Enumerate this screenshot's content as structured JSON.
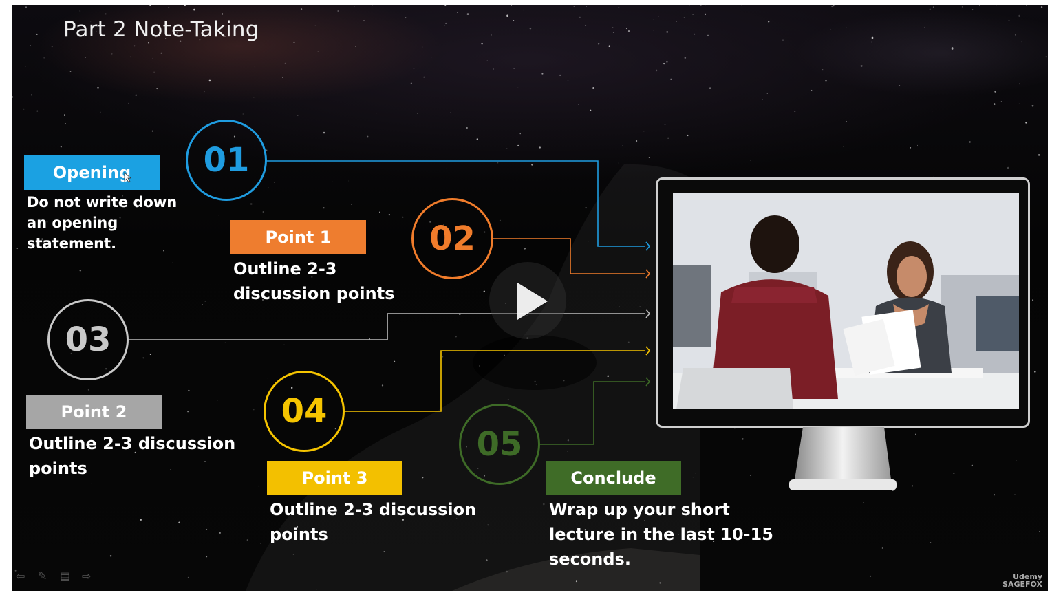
{
  "slide": {
    "title": "Part 2 Note-Taking",
    "steps": [
      {
        "number": "01",
        "color": "#1f9ce0",
        "label": "Opening",
        "label_bg": "#1ba1e2",
        "description_lines": [
          "Do not write down",
          "an opening",
          "statement."
        ]
      },
      {
        "number": "02",
        "color": "#f07c2b",
        "label": "Point 1",
        "label_bg": "#ee7d2f",
        "description_lines": [
          "Outline 2-3",
          "discussion points"
        ]
      },
      {
        "number": "03",
        "color": "#c9c9c9",
        "label": "Point 2",
        "label_bg": "#a6a6a6",
        "description_lines": [
          "Outline 2-3 discussion",
          "points"
        ]
      },
      {
        "number": "04",
        "color": "#f5c400",
        "label": "Point 3",
        "label_bg": "#f3c000",
        "description_lines": [
          "Outline 2-3 discussion",
          "points"
        ]
      },
      {
        "number": "05",
        "color": "#3e6b27",
        "label": "Conclude",
        "label_bg": "#3f6c27",
        "description_lines": [
          "Wrap up your short",
          "lecture in the last 10-15",
          "seconds."
        ]
      }
    ]
  },
  "watermark": {
    "line1": "Udemy",
    "line2": "SAGEFOX"
  },
  "icons": {
    "play": "play-icon",
    "cursor": "cursor-icon"
  }
}
